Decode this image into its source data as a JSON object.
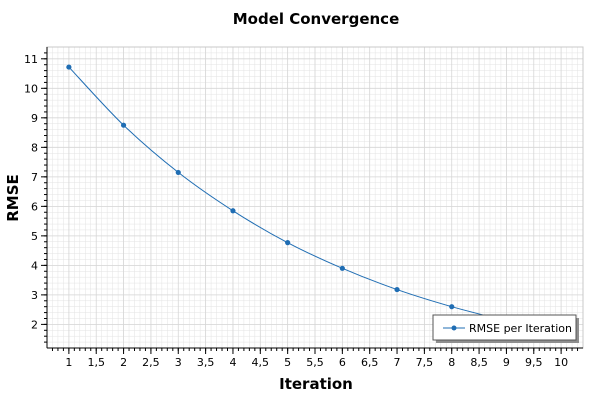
{
  "chart_data": {
    "type": "line",
    "title": "Model Convergence",
    "xlabel": "Iteration",
    "ylabel": "RMSE",
    "x": [
      1,
      2,
      3,
      4,
      5,
      6,
      7,
      8,
      9
    ],
    "series": [
      {
        "name": "RMSE per Iteration",
        "values": [
          10.72,
          8.75,
          7.15,
          5.85,
          4.77,
          3.9,
          3.18,
          2.6,
          2.12
        ]
      }
    ],
    "xlim": [
      0.6,
      10.4
    ],
    "ylim": [
      1.2,
      11.4
    ],
    "x_ticks": [
      "1",
      "1,5",
      "2",
      "2,5",
      "3",
      "3,5",
      "4",
      "4,5",
      "5",
      "5,5",
      "6",
      "6,5",
      "7",
      "7,5",
      "8",
      "8,5",
      "9",
      "9,5",
      "10"
    ],
    "x_tick_values": [
      1,
      1.5,
      2,
      2.5,
      3,
      3.5,
      4,
      4.5,
      5,
      5.5,
      6,
      6.5,
      7,
      7.5,
      8,
      8.5,
      9,
      9.5,
      10
    ],
    "y_ticks": [
      "2",
      "3",
      "4",
      "5",
      "6",
      "7",
      "8",
      "9",
      "10",
      "11"
    ],
    "y_tick_values": [
      2,
      3,
      4,
      5,
      6,
      7,
      8,
      9,
      10,
      11
    ],
    "grid": true,
    "legend_position": "bottom-right",
    "colors": {
      "series": "#1f6db3",
      "grid": "#e3e3e3",
      "axis": "#000000"
    }
  }
}
